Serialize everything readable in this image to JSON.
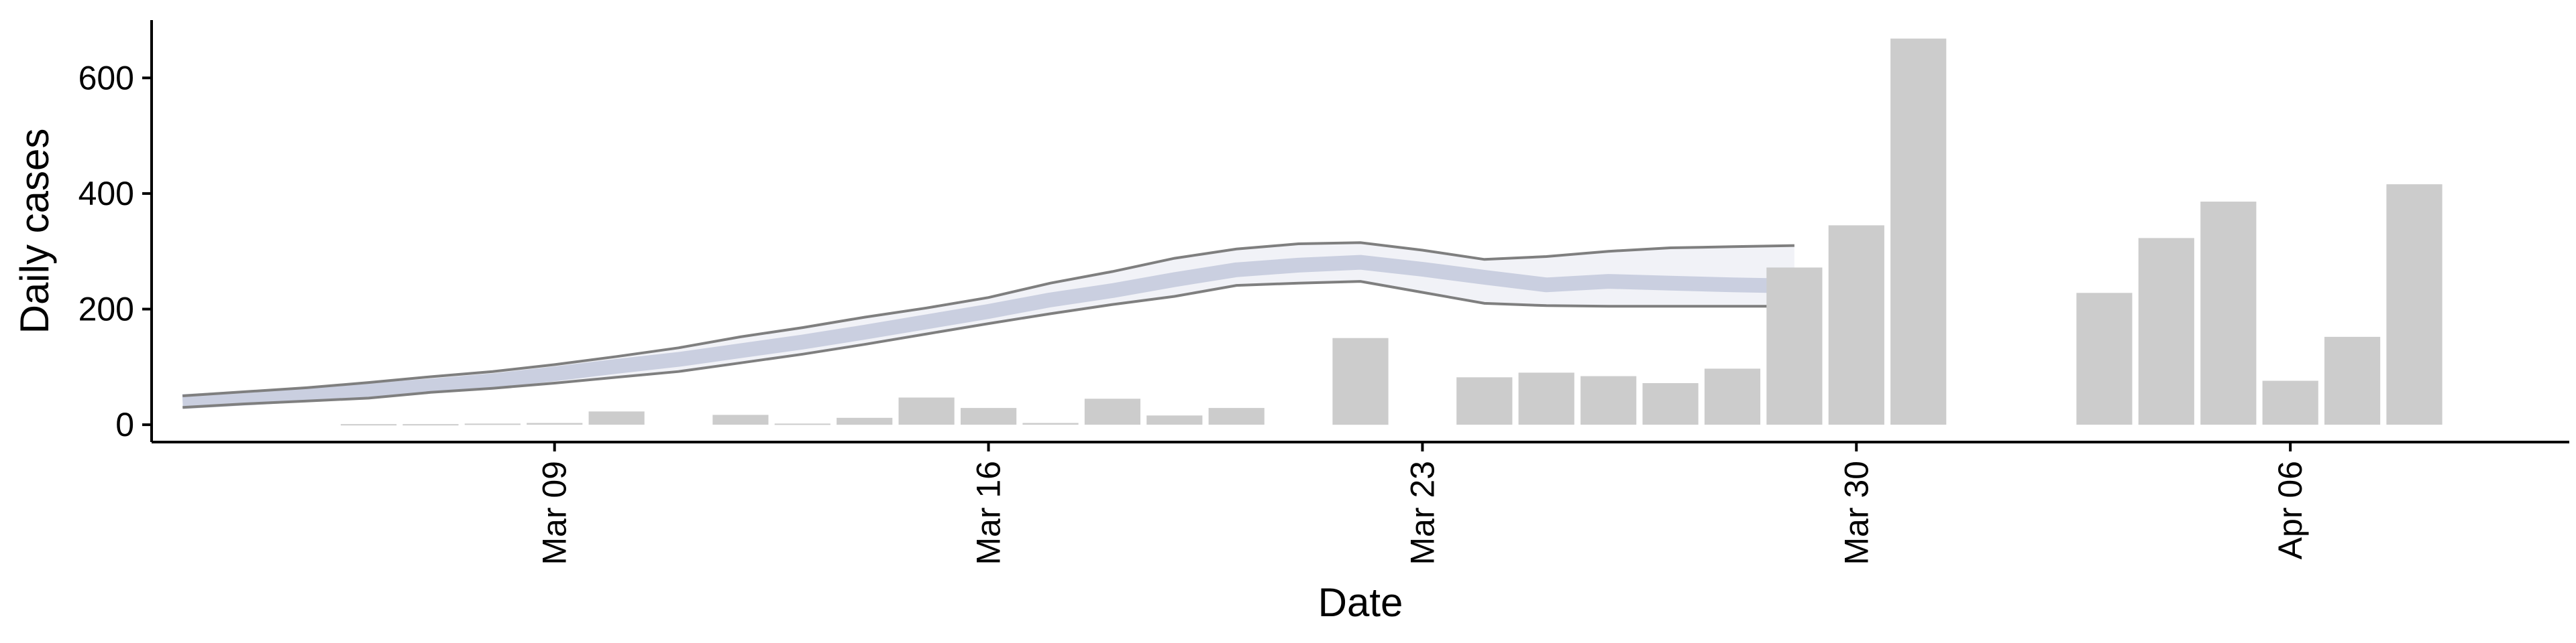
{
  "chart_data": {
    "type": "bar",
    "xlabel": "Date",
    "ylabel": "Daily cases",
    "ylim": [
      -30,
      700
    ],
    "xlim": [
      "2020-03-02T12:00",
      "2020-04-10T12:00"
    ],
    "x_ticks": [
      {
        "date": "2020-03-09",
        "label": "Mar 09"
      },
      {
        "date": "2020-03-16",
        "label": "Mar 16"
      },
      {
        "date": "2020-03-23",
        "label": "Mar 23"
      },
      {
        "date": "2020-03-30",
        "label": "Mar 30"
      },
      {
        "date": "2020-04-06",
        "label": "Apr 06"
      }
    ],
    "y_ticks": [
      0,
      200,
      400,
      600
    ],
    "grid": false,
    "bar_color": "#cccccc",
    "series": [
      {
        "type": "bar",
        "dates": [
          "2020-03-05",
          "2020-03-06",
          "2020-03-07",
          "2020-03-08",
          "2020-03-09",
          "2020-03-10",
          "2020-03-11",
          "2020-03-12",
          "2020-03-13",
          "2020-03-14",
          "2020-03-15",
          "2020-03-16",
          "2020-03-17",
          "2020-03-18",
          "2020-03-19",
          "2020-03-20",
          "2020-03-21",
          "2020-03-22",
          "2020-03-23",
          "2020-03-24",
          "2020-03-25",
          "2020-03-26",
          "2020-03-27",
          "2020-03-28",
          "2020-03-29",
          "2020-03-30",
          "2020-03-31",
          "2020-04-01",
          "2020-04-02",
          "2020-04-03",
          "2020-04-04",
          "2020-04-05",
          "2020-04-06",
          "2020-04-07",
          "2020-04-08"
        ],
        "values": [
          0,
          1,
          1,
          2,
          3,
          23,
          0,
          17,
          2,
          12,
          47,
          29,
          3,
          45,
          16,
          29,
          0,
          150,
          0,
          82,
          90,
          84,
          72,
          97,
          272,
          345,
          668,
          0,
          0,
          228,
          323,
          386,
          76,
          152,
          416
        ]
      },
      {
        "type": "band",
        "dates": [
          "2020-03-03",
          "2020-03-04",
          "2020-03-05",
          "2020-03-06",
          "2020-03-07",
          "2020-03-08",
          "2020-03-09",
          "2020-03-10",
          "2020-03-11",
          "2020-03-12",
          "2020-03-13",
          "2020-03-14",
          "2020-03-15",
          "2020-03-16",
          "2020-03-17",
          "2020-03-18",
          "2020-03-19",
          "2020-03-20",
          "2020-03-21",
          "2020-03-22",
          "2020-03-23",
          "2020-03-24",
          "2020-03-25",
          "2020-03-26",
          "2020-03-27",
          "2020-03-28",
          "2020-03-29"
        ],
        "lower": [
          30,
          36,
          41,
          46,
          56,
          63,
          72,
          82,
          92,
          107,
          122,
          139,
          157,
          175,
          192,
          208,
          222,
          241,
          245,
          248,
          229,
          210,
          206,
          205,
          205,
          205,
          205
        ],
        "median": [
          40,
          46,
          52,
          59,
          67,
          76,
          88,
          101,
          113,
          128,
          143,
          160,
          178,
          196,
          216,
          232,
          251,
          268,
          276,
          281,
          269,
          255,
          242,
          248,
          245,
          242,
          240
        ],
        "upper": [
          50,
          57,
          64,
          73,
          83,
          92,
          104,
          118,
          133,
          152,
          168,
          186,
          202,
          220,
          245,
          265,
          288,
          304,
          313,
          315,
          302,
          286,
          291,
          300,
          306,
          308,
          310
        ],
        "color": "#c3c9dc",
        "line_color": "#7f7f7f"
      }
    ]
  }
}
